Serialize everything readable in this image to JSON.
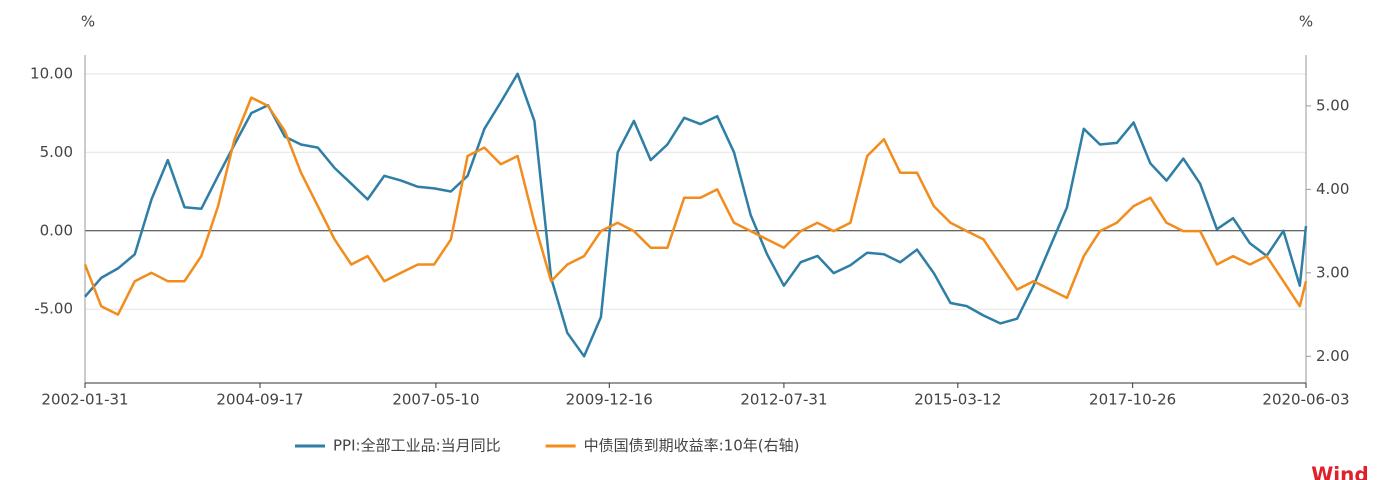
{
  "chart_data": {
    "type": "line",
    "left_unit": "%",
    "right_unit": "%",
    "watermark": "Wind",
    "xlim": [
      "2002-01-31",
      "2020-06-03"
    ],
    "xticks": [
      "2002-01-31",
      "2004-09-17",
      "2007-05-10",
      "2009-12-16",
      "2012-07-31",
      "2015-03-12",
      "2017-10-26",
      "2020-06-03"
    ],
    "ylim": [
      -9.7,
      11.2
    ],
    "yticks": [
      {
        "value": 10,
        "label": "10.00"
      },
      {
        "value": 5,
        "label": "5.00"
      },
      {
        "value": 0,
        "label": "0.00"
      },
      {
        "value": -5,
        "label": "-5.00"
      }
    ],
    "y2lim": [
      1.68,
      5.61
    ],
    "y2ticks": [
      {
        "value": 5,
        "label": "5.00"
      },
      {
        "value": 4,
        "label": "4.00"
      },
      {
        "value": 3,
        "label": "3.00"
      },
      {
        "value": 2,
        "label": "2.00"
      }
    ],
    "grid": true,
    "legend": "bottom",
    "x": [
      "2002-01-31",
      "2002-04-30",
      "2002-07-31",
      "2002-10-31",
      "2003-01-31",
      "2003-04-30",
      "2003-07-31",
      "2003-10-31",
      "2004-01-31",
      "2004-04-30",
      "2004-07-31",
      "2004-10-31",
      "2005-01-31",
      "2005-04-30",
      "2005-07-31",
      "2005-10-31",
      "2006-01-31",
      "2006-04-30",
      "2006-07-31",
      "2006-10-31",
      "2007-01-31",
      "2007-04-30",
      "2007-07-31",
      "2007-10-31",
      "2008-01-31",
      "2008-04-30",
      "2008-07-31",
      "2008-10-31",
      "2009-01-31",
      "2009-04-30",
      "2009-07-31",
      "2009-10-31",
      "2010-01-31",
      "2010-04-30",
      "2010-07-31",
      "2010-10-31",
      "2011-01-31",
      "2011-04-30",
      "2011-07-31",
      "2011-10-31",
      "2012-01-31",
      "2012-04-30",
      "2012-07-31",
      "2012-10-31",
      "2013-01-31",
      "2013-04-30",
      "2013-07-31",
      "2013-10-31",
      "2014-01-31",
      "2014-04-30",
      "2014-07-31",
      "2014-10-31",
      "2015-01-31",
      "2015-04-30",
      "2015-07-31",
      "2015-10-31",
      "2016-01-31",
      "2016-04-30",
      "2016-07-31",
      "2016-10-31",
      "2017-01-31",
      "2017-04-30",
      "2017-07-31",
      "2017-10-31",
      "2018-01-31",
      "2018-04-30",
      "2018-07-31",
      "2018-10-31",
      "2019-01-31",
      "2019-04-30",
      "2019-07-31",
      "2019-10-31",
      "2020-01-31",
      "2020-04-30",
      "2020-06-03"
    ],
    "series": [
      {
        "name": "PPI:全部工业品:当月同比",
        "color": "#2e7ea6",
        "values": [
          -4.2,
          -3.0,
          -2.4,
          -1.5,
          2.0,
          4.5,
          1.5,
          1.4,
          3.5,
          5.5,
          7.5,
          8.0,
          6.0,
          5.5,
          5.3,
          4.0,
          3.0,
          2.0,
          3.5,
          3.2,
          2.8,
          2.7,
          2.5,
          3.5,
          6.5,
          8.2,
          10.0,
          7.0,
          -3.0,
          -6.5,
          -8.0,
          -5.5,
          5.0,
          7.0,
          4.5,
          5.5,
          7.2,
          6.8,
          7.3,
          5.0,
          1.0,
          -1.5,
          -3.5,
          -2.0,
          -1.6,
          -2.7,
          -2.2,
          -1.4,
          -1.5,
          -2.0,
          -1.2,
          -2.7,
          -4.6,
          -4.8,
          -5.4,
          -5.9,
          -5.6,
          -3.5,
          -1.0,
          1.5,
          6.5,
          5.5,
          5.6,
          6.9,
          4.3,
          3.2,
          4.6,
          3.0,
          0.1,
          0.8,
          -0.8,
          -1.6,
          0.0,
          -3.5,
          0.3
        ]
      },
      {
        "name": "中债国债到期收益率:10年(右轴)",
        "color": "#f28c1c",
        "axis": "y2",
        "values": [
          3.1,
          2.6,
          2.5,
          2.9,
          3.0,
          2.9,
          2.9,
          3.2,
          3.8,
          4.6,
          5.1,
          5.0,
          4.7,
          4.2,
          3.8,
          3.4,
          3.1,
          3.2,
          2.9,
          3.0,
          3.1,
          3.1,
          3.4,
          4.4,
          4.5,
          4.3,
          4.4,
          3.6,
          2.9,
          3.1,
          3.2,
          3.5,
          3.6,
          3.5,
          3.3,
          3.3,
          3.9,
          3.9,
          4.0,
          3.6,
          3.5,
          3.4,
          3.3,
          3.5,
          3.6,
          3.5,
          3.6,
          4.4,
          4.6,
          4.2,
          4.2,
          3.8,
          3.6,
          3.5,
          3.4,
          3.1,
          2.8,
          2.9,
          2.8,
          2.7,
          3.2,
          3.5,
          3.6,
          3.8,
          3.9,
          3.6,
          3.5,
          3.5,
          3.1,
          3.2,
          3.1,
          3.2,
          2.9,
          2.6,
          2.9
        ]
      }
    ]
  }
}
